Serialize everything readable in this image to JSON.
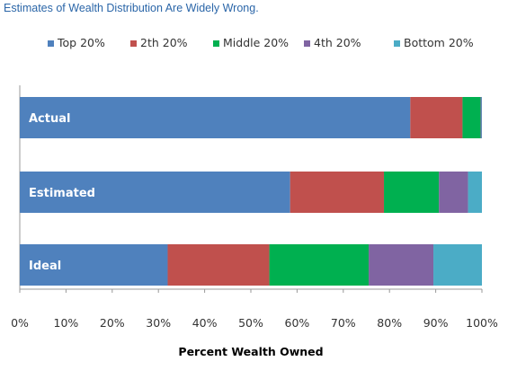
{
  "title": "Estimates of Wealth Distribution Are Widely Wrong.",
  "chart_data": {
    "type": "bar",
    "orientation": "horizontal",
    "stacked": true,
    "categories": [
      "Actual",
      "Estimated",
      "Ideal"
    ],
    "series": [
      {
        "name": "Top 20%",
        "color": "#4f81bd",
        "values": [
          84.5,
          58.5,
          32
        ]
      },
      {
        "name": "2th 20%",
        "color": "#c0504d",
        "values": [
          11.3,
          20.3,
          22
        ]
      },
      {
        "name": "Middle 20%",
        "color": "#00b050",
        "values": [
          3.9,
          11.9,
          21.5
        ]
      },
      {
        "name": "4th 20%",
        "color": "#8064a2",
        "values": [
          0.2,
          6.3,
          14
        ]
      },
      {
        "name": "Bottom 20%",
        "color": "#4bacc6",
        "values": [
          0.1,
          3.0,
          10.5
        ]
      }
    ],
    "xlabel": "Percent Wealth Owned",
    "xlim": [
      0,
      100
    ],
    "xticks": [
      "0%",
      "10%",
      "20%",
      "30%",
      "40%",
      "50%",
      "60%",
      "70%",
      "80%",
      "90%",
      "100%"
    ],
    "legend_position": "top",
    "grid": false
  }
}
